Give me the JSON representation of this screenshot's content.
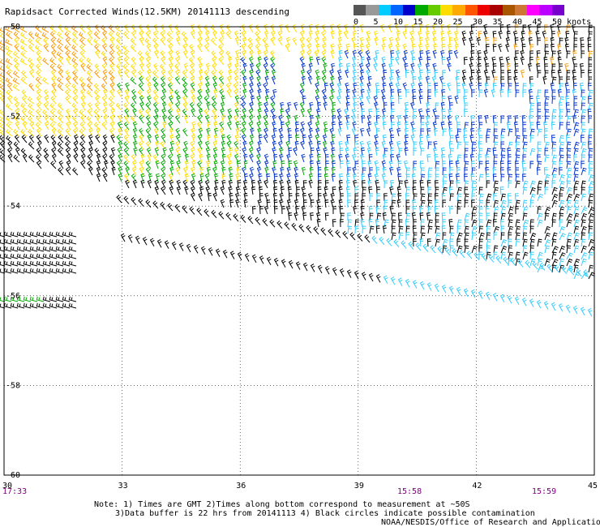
{
  "title": "Rapidsact Corrected Winds(12.5KM) 20141113 descending",
  "legend": {
    "labels": [
      "0",
      "5",
      "10",
      "15",
      "20",
      "25",
      "30",
      "35",
      "40",
      "45",
      "50 knots"
    ],
    "colors": [
      "#555555",
      "#999999",
      "#00ccff",
      "#0066ff",
      "#0000cc",
      "#00aa00",
      "#66cc00",
      "#ffdd00",
      "#ffaa00",
      "#ff5500",
      "#ee0000",
      "#aa0000",
      "#aa5500",
      "#cc7733",
      "#ff00ff",
      "#bb00ff",
      "#7700cc"
    ]
  },
  "axes": {
    "lon_ticks": [
      "30",
      "33",
      "36",
      "39",
      "42",
      "45"
    ],
    "lat_ticks": [
      "-50",
      "-52",
      "-54",
      "-56",
      "-58",
      "-60"
    ],
    "time_labels": [
      "17:33",
      "15:58",
      "15:59"
    ]
  },
  "notes": [
    "Note: 1) Times are GMT 2)Times along bottom correspond to measurement at ~50S",
    "3)Data buffer is 22 hrs from 20141113 4) Black circles indicate possible contamination",
    "NOAA/NESDIS/Office of Research and Applications"
  ],
  "colors": {
    "calm": "#000000",
    "light": "#33ccff",
    "moderate": "#0033cc",
    "fresh": "#00aa00",
    "strong": "#ffdd00",
    "gale": "#ff9900",
    "time_label": "#800080"
  }
}
